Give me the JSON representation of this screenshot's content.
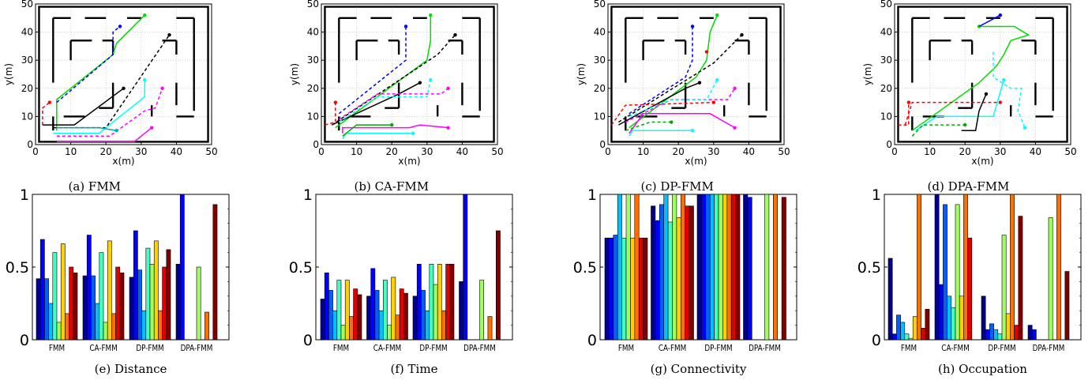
{
  "chart_data": [
    {
      "type": "line",
      "caption": "(a) FMM",
      "xlabel": "x(m)",
      "ylabel": "y(m)",
      "xlim": [
        0,
        50
      ],
      "ylim": [
        0,
        50
      ],
      "xticks": [
        "0",
        "10",
        "20",
        "30",
        "40",
        "50"
      ],
      "yticks": [
        "0",
        "10",
        "20",
        "30",
        "40",
        "50"
      ],
      "grid": true,
      "series": [
        {
          "color": "#00dd00",
          "dash": false,
          "points": [
            [
              6,
              5
            ],
            [
              6,
              16
            ],
            [
              22,
              32
            ],
            [
              23,
              36
            ],
            [
              31,
              46
            ]
          ]
        },
        {
          "color": "#0000ff",
          "dash": true,
          "points": [
            [
              6,
              15
            ],
            [
              22,
              32
            ],
            [
              22,
              40
            ],
            [
              24,
              42
            ]
          ]
        },
        {
          "color": "#000000",
          "dash": true,
          "points": [
            [
              5,
              6
            ],
            [
              20,
              6
            ],
            [
              38,
              39
            ]
          ]
        },
        {
          "color": "#000000",
          "dash": false,
          "points": [
            [
              2,
              7
            ],
            [
              11,
              7
            ],
            [
              25,
              20
            ]
          ]
        },
        {
          "color": "#00ffff",
          "dash": false,
          "points": [
            [
              5,
              4
            ],
            [
              18,
              4
            ],
            [
              31,
              17
            ],
            [
              31,
              23
            ]
          ]
        },
        {
          "color": "#ff00ff",
          "dash": true,
          "points": [
            [
              6,
              3
            ],
            [
              21,
              3
            ],
            [
              31,
              12
            ],
            [
              34,
              13
            ],
            [
              36,
              20
            ]
          ]
        },
        {
          "color": "#ff00ff",
          "dash": false,
          "points": [
            [
              6,
              1
            ],
            [
              28,
              1
            ],
            [
              33,
              6
            ]
          ]
        },
        {
          "color": "#ff0000",
          "dash": true,
          "points": [
            [
              2,
              7
            ],
            [
              2,
              13
            ],
            [
              4,
              15
            ]
          ]
        },
        {
          "color": "#00aaaa",
          "dash": false,
          "points": [
            [
              6,
              6
            ],
            [
              18,
              6
            ],
            [
              23,
              5
            ]
          ]
        }
      ]
    },
    {
      "type": "line",
      "caption": "(b) CA-FMM",
      "xlabel": "x(m)",
      "ylabel": "y(m)",
      "xlim": [
        0,
        50
      ],
      "ylim": [
        0,
        50
      ],
      "xticks": [
        "0",
        "10",
        "20",
        "30",
        "40",
        "50"
      ],
      "yticks": [
        "0",
        "10",
        "20",
        "30",
        "40",
        "50"
      ],
      "grid": true,
      "series": [
        {
          "color": "#00dd00",
          "dash": false,
          "points": [
            [
              4,
              6
            ],
            [
              30,
              30
            ],
            [
              31,
              37
            ],
            [
              31,
              46
            ]
          ]
        },
        {
          "color": "#0000ff",
          "dash": true,
          "points": [
            [
              5,
              11
            ],
            [
              24,
              30
            ],
            [
              24,
              42
            ]
          ]
        },
        {
          "color": "#000000",
          "dash": true,
          "points": [
            [
              3,
              7
            ],
            [
              33,
              32
            ],
            [
              38,
              39
            ]
          ]
        },
        {
          "color": "#000000",
          "dash": false,
          "points": [
            [
              3,
              7
            ],
            [
              22,
              18
            ],
            [
              28,
              22
            ]
          ]
        },
        {
          "color": "#ff00ff",
          "dash": true,
          "points": [
            [
              5,
              9
            ],
            [
              16,
              18
            ],
            [
              34,
              18
            ],
            [
              36,
              20
            ]
          ]
        },
        {
          "color": "#00ffff",
          "dash": true,
          "points": [
            [
              5,
              8
            ],
            [
              16,
              17
            ],
            [
              30,
              17
            ],
            [
              31,
              23
            ]
          ]
        },
        {
          "color": "#ff00ff",
          "dash": false,
          "points": [
            [
              6,
              4
            ],
            [
              6,
              6
            ],
            [
              25,
              6
            ],
            [
              28,
              7
            ],
            [
              36,
              6
            ]
          ]
        },
        {
          "color": "#00ffff",
          "dash": false,
          "points": [
            [
              6,
              2
            ],
            [
              7,
              4
            ],
            [
              26,
              4
            ]
          ]
        },
        {
          "color": "#ff0000",
          "dash": true,
          "points": [
            [
              1,
              7
            ],
            [
              4,
              8
            ],
            [
              4,
              15
            ]
          ]
        },
        {
          "color": "#00aa00",
          "dash": false,
          "points": [
            [
              6,
              3
            ],
            [
              10,
              7
            ],
            [
              20,
              7
            ]
          ]
        }
      ]
    },
    {
      "type": "line",
      "caption": "(c) DP-FMM",
      "xlabel": "x(m)",
      "ylabel": "y(m)",
      "xlim": [
        0,
        50
      ],
      "ylim": [
        0,
        50
      ],
      "xticks": [
        "0",
        "10",
        "20",
        "30",
        "40",
        "50"
      ],
      "yticks": [
        "0",
        "10",
        "20",
        "30",
        "40",
        "50"
      ],
      "grid": true,
      "series": [
        {
          "color": "#00dd00",
          "dash": false,
          "points": [
            [
              6,
              6
            ],
            [
              25,
              24
            ],
            [
              28,
              30
            ],
            [
              29,
              40
            ],
            [
              31,
              46
            ]
          ]
        },
        {
          "color": "#0000ff",
          "dash": true,
          "points": [
            [
              6,
              11
            ],
            [
              22,
              24
            ],
            [
              24,
              30
            ],
            [
              24,
              42
            ]
          ]
        },
        {
          "color": "#000000",
          "dash": true,
          "points": [
            [
              3,
              8
            ],
            [
              30,
              29
            ],
            [
              38,
              39
            ]
          ]
        },
        {
          "color": "#000000",
          "dash": false,
          "points": [
            [
              3,
              7
            ],
            [
              22,
              20
            ],
            [
              26,
              22
            ]
          ]
        },
        {
          "color": "#ff00ff",
          "dash": true,
          "points": [
            [
              5,
              8
            ],
            [
              18,
              16
            ],
            [
              34,
              16
            ],
            [
              36,
              20
            ]
          ]
        },
        {
          "color": "#00ffff",
          "dash": true,
          "points": [
            [
              6,
              10
            ],
            [
              18,
              16
            ],
            [
              28,
              16
            ],
            [
              31,
              23
            ]
          ]
        },
        {
          "color": "#ff0000",
          "dash": true,
          "points": [
            [
              1,
              7
            ],
            [
              5,
              14
            ],
            [
              30,
              15
            ]
          ]
        },
        {
          "color": "#ff00ff",
          "dash": false,
          "points": [
            [
              6,
              4
            ],
            [
              10,
              11
            ],
            [
              29,
              11
            ],
            [
              36,
              6
            ]
          ]
        },
        {
          "color": "#00ffff",
          "dash": false,
          "points": [
            [
              6,
              3
            ],
            [
              7,
              5
            ],
            [
              24,
              5
            ]
          ]
        },
        {
          "color": "#00aa00",
          "dash": true,
          "points": [
            [
              5,
              5
            ],
            [
              12,
              8
            ],
            [
              18,
              8
            ]
          ]
        },
        {
          "color": "#ff0000",
          "dash": false,
          "points": [
            [
              28,
              33
            ],
            [
              28,
              33
            ]
          ]
        }
      ]
    },
    {
      "type": "line",
      "caption": "(d) DPA-FMM",
      "xlabel": "x(m)",
      "ylabel": "y(m)",
      "xlim": [
        0,
        50
      ],
      "ylim": [
        0,
        50
      ],
      "xticks": [
        "0",
        "10",
        "20",
        "30",
        "40",
        "50"
      ],
      "yticks": [
        "0",
        "10",
        "20",
        "30",
        "40",
        "50"
      ],
      "grid": true,
      "series": [
        {
          "color": "#00dd00",
          "dash": false,
          "points": [
            [
              5,
              5
            ],
            [
              24,
              22
            ],
            [
              29,
              28
            ],
            [
              31,
              32
            ],
            [
              33,
              37
            ],
            [
              38,
              39
            ],
            [
              34,
              42
            ],
            [
              24,
              42
            ]
          ]
        },
        {
          "color": "#0000ff",
          "dash": false,
          "points": [
            [
              24,
              42
            ],
            [
              30,
              46
            ]
          ]
        },
        {
          "color": "#00ffff",
          "dash": true,
          "points": [
            [
              28,
              33
            ],
            [
              28,
              24
            ],
            [
              33,
              20
            ],
            [
              36,
              20
            ],
            [
              35,
              12
            ],
            [
              37,
              6
            ]
          ]
        },
        {
          "color": "#ff0000",
          "dash": true,
          "points": [
            [
              3,
              7
            ],
            [
              5,
              15
            ],
            [
              30,
              15
            ]
          ]
        },
        {
          "color": "#00ffff",
          "dash": false,
          "points": [
            [
              6,
              5
            ],
            [
              12,
              10
            ],
            [
              28,
              10
            ],
            [
              31,
              23
            ]
          ]
        },
        {
          "color": "#000000",
          "dash": false,
          "points": [
            [
              19,
              5
            ],
            [
              23,
              5
            ],
            [
              24,
              12
            ],
            [
              26,
              18
            ]
          ]
        },
        {
          "color": "#00aa00",
          "dash": true,
          "points": [
            [
              5,
              3
            ],
            [
              8,
              7
            ],
            [
              20,
              7
            ]
          ]
        },
        {
          "color": "#ff0000",
          "dash": true,
          "points": [
            [
              1,
              7
            ],
            [
              4,
              7
            ],
            [
              4,
              15
            ]
          ]
        }
      ]
    },
    {
      "type": "bar",
      "caption": "(e) Distance",
      "categories": [
        "FMM",
        "CA-FMM",
        "DP-FMM",
        "DPA-FMM"
      ],
      "ylim": [
        0,
        1
      ],
      "yticks": [
        "0",
        "0.5",
        "1"
      ],
      "values": [
        [
          0.42,
          0.69,
          0.42,
          0.25,
          0.6,
          0.12,
          0.66,
          0.18,
          0.5,
          0.46
        ],
        [
          0.44,
          0.72,
          0.44,
          0.25,
          0.6,
          0.12,
          0.68,
          0.18,
          0.5,
          0.46
        ],
        [
          0.43,
          0.75,
          0.48,
          0.2,
          0.63,
          0.52,
          0.68,
          0.2,
          0.5,
          0.62
        ],
        [
          0.52,
          1.0,
          0.0,
          0.0,
          0.0,
          0.5,
          0.0,
          0.19,
          0.0,
          0.93
        ]
      ]
    },
    {
      "type": "bar",
      "caption": "(f) Time",
      "categories": [
        "FMM",
        "CA-FMM",
        "DP-FMM",
        "DPA-FMM"
      ],
      "ylim": [
        0,
        1
      ],
      "yticks": [
        "0",
        "0.5",
        "1"
      ],
      "values": [
        [
          0.28,
          0.46,
          0.34,
          0.2,
          0.41,
          0.1,
          0.41,
          0.16,
          0.35,
          0.31
        ],
        [
          0.3,
          0.49,
          0.34,
          0.2,
          0.41,
          0.1,
          0.43,
          0.17,
          0.35,
          0.32
        ],
        [
          0.3,
          0.52,
          0.34,
          0.2,
          0.52,
          0.38,
          0.52,
          0.2,
          0.52,
          0.52
        ],
        [
          0.4,
          1.0,
          0.0,
          0.0,
          0.0,
          0.41,
          0.0,
          0.16,
          0.0,
          0.75
        ]
      ]
    },
    {
      "type": "bar",
      "caption": "(g) Connectivity",
      "categories": [
        "FMM",
        "CA-FMM",
        "DP-FMM",
        "DPA-FMM"
      ],
      "ylim": [
        0,
        1
      ],
      "yticks": [
        "0",
        "0.5",
        "1"
      ],
      "values": [
        [
          0.7,
          0.7,
          0.72,
          1.0,
          0.7,
          1.0,
          0.7,
          1.0,
          0.7,
          0.7
        ],
        [
          0.92,
          0.82,
          0.93,
          1.0,
          0.81,
          1.0,
          0.84,
          1.0,
          0.92,
          0.92
        ],
        [
          1.0,
          1.0,
          1.0,
          1.0,
          1.0,
          1.0,
          1.0,
          1.0,
          1.0,
          1.0
        ],
        [
          1.0,
          0.98,
          0.0,
          0.0,
          0.0,
          1.0,
          0.0,
          1.0,
          0.0,
          0.98
        ]
      ]
    },
    {
      "type": "bar",
      "caption": "(h) Occupation",
      "categories": [
        "FMM",
        "CA-FMM",
        "DP-FMM",
        "DPA-FMM"
      ],
      "ylim": [
        0,
        1
      ],
      "yticks": [
        "0",
        "0.5",
        "1"
      ],
      "values": [
        [
          0.56,
          0.04,
          0.17,
          0.12,
          0.04,
          0.01,
          0.16,
          1.0,
          0.08,
          0.21
        ],
        [
          1.0,
          0.38,
          0.93,
          0.3,
          0.22,
          0.93,
          0.3,
          1.0,
          0.7,
          0.0
        ],
        [
          0.3,
          0.07,
          0.11,
          0.07,
          0.04,
          0.72,
          0.18,
          1.0,
          0.1,
          0.85
        ],
        [
          0.1,
          0.07,
          0.0,
          0.0,
          0.0,
          0.84,
          0.0,
          1.0,
          0.0,
          0.47
        ]
      ]
    }
  ],
  "colors": {
    "bar_palette": [
      "#00008f",
      "#0000ff",
      "#0060ff",
      "#00c0ff",
      "#40ffbf",
      "#a0ff60",
      "#ffd000",
      "#ff7000",
      "#e00000",
      "#800000"
    ],
    "walls": "#000000",
    "grid": "#c8c8c8"
  }
}
